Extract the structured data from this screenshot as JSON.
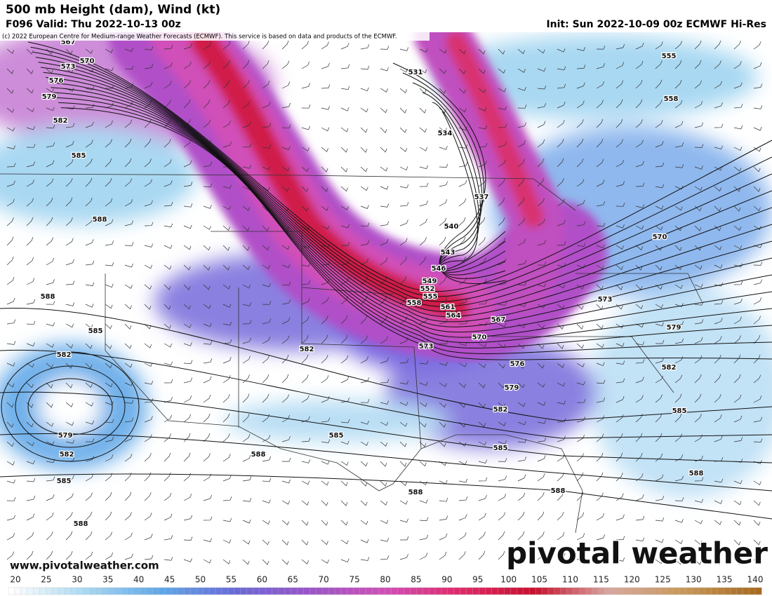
{
  "header": {
    "title": "500 mb Height (dam), Wind (kt)",
    "valid": "F096 Valid: Thu 2022-10-13 00z",
    "init": "Init: Sun 2022-10-09 00z ECMWF Hi-Res",
    "copyright": "(c) 2022 European Centre for Medium-range Weather Forecasts (ECMWF). This service is based on data and products of the ECMWF."
  },
  "contour_labels": [
    567,
    570,
    573,
    576,
    579,
    582,
    585,
    588,
    588,
    585,
    582,
    579,
    582,
    585,
    588,
    531,
    534,
    537,
    540,
    543,
    546,
    549,
    552,
    555,
    558,
    561,
    564,
    567,
    570,
    573,
    576,
    579,
    582,
    585,
    588,
    582,
    585,
    588,
    588,
    555,
    558,
    570,
    573,
    579,
    582,
    585,
    588
  ],
  "colorbar": {
    "ticks": [
      20,
      25,
      30,
      35,
      40,
      45,
      50,
      55,
      60,
      65,
      70,
      75,
      80,
      85,
      90,
      95,
      100,
      105,
      110,
      115,
      120,
      125,
      130,
      135,
      140
    ],
    "colors": [
      "#ffffff",
      "#a9d8f2",
      "#5fa8e8",
      "#6a6ad8",
      "#9b55c9",
      "#d050b8",
      "#e02a6a",
      "#c8102e",
      "#d8a8a0",
      "#c89858",
      "#a86a20"
    ]
  },
  "watermark": "pivotal weather",
  "url": "www.pivotalweather.com"
}
